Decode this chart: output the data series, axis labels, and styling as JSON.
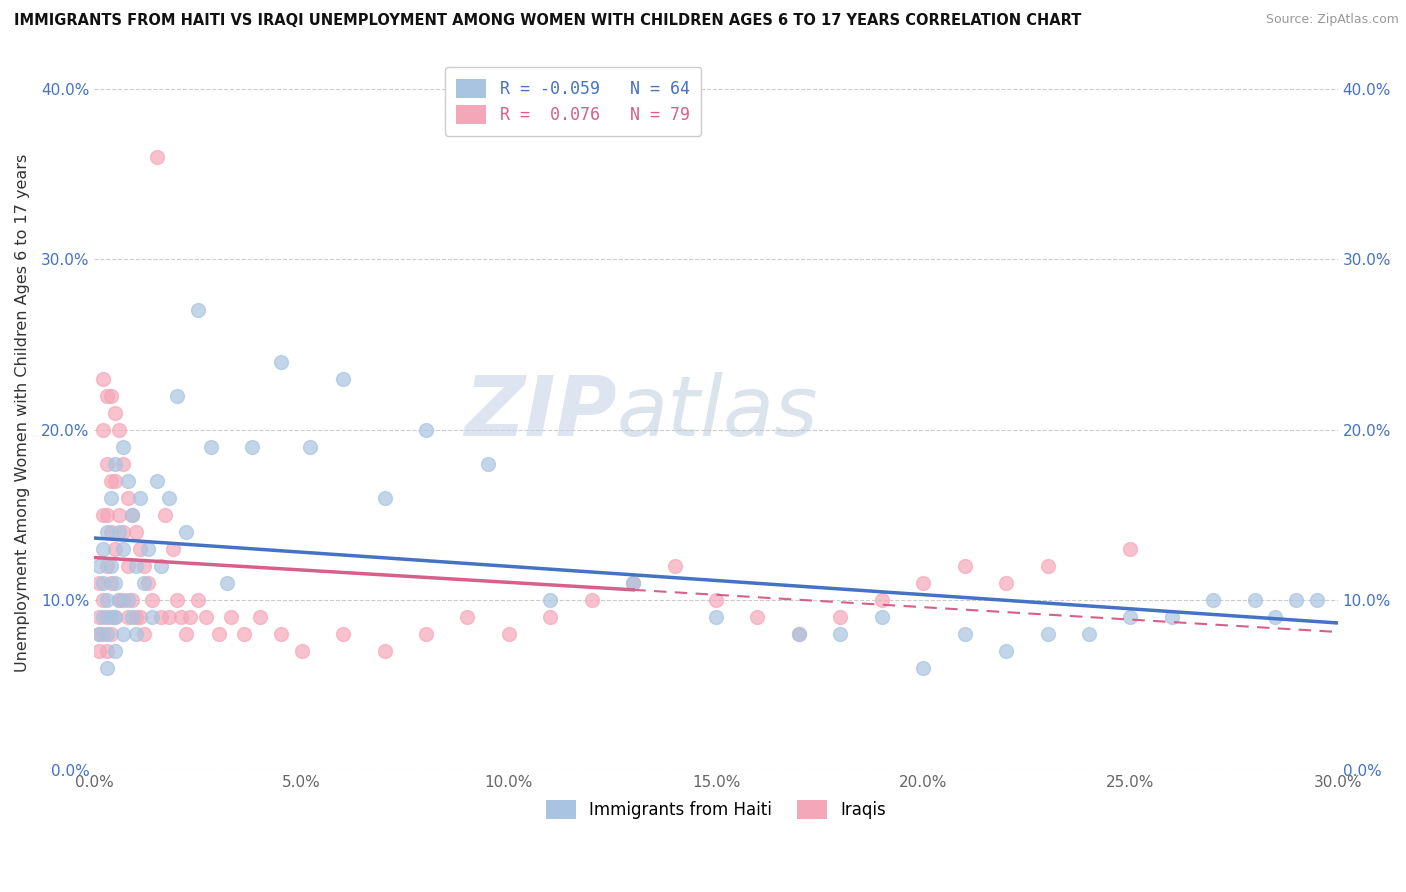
{
  "title": "IMMIGRANTS FROM HAITI VS IRAQI UNEMPLOYMENT AMONG WOMEN WITH CHILDREN AGES 6 TO 17 YEARS CORRELATION CHART",
  "source": "Source: ZipAtlas.com",
  "ylabel": "Unemployment Among Women with Children Ages 6 to 17 years",
  "xlim": [
    0.0,
    0.3
  ],
  "ylim": [
    0.0,
    0.42
  ],
  "xtick_labels": [
    "0.0%",
    "5.0%",
    "10.0%",
    "15.0%",
    "20.0%",
    "25.0%",
    "30.0%"
  ],
  "xtick_values": [
    0.0,
    0.05,
    0.1,
    0.15,
    0.2,
    0.25,
    0.3
  ],
  "ytick_labels": [
    "0.0%",
    "10.0%",
    "20.0%",
    "30.0%",
    "40.0%"
  ],
  "ytick_values": [
    0.0,
    0.1,
    0.2,
    0.3,
    0.4
  ],
  "haiti_color": "#a8c4e0",
  "iraqi_color": "#f4a7b9",
  "legend_haiti_label": "Immigrants from Haiti",
  "legend_iraqi_label": "Iraqis",
  "haiti_R": -0.059,
  "haiti_N": 64,
  "iraqi_R": 0.076,
  "iraqi_N": 79,
  "haiti_line_color": "#4472c4",
  "iraqi_line_color": "#d75f8a",
  "watermark_zip": "ZIP",
  "watermark_atlas": "atlas",
  "haiti_scatter_x": [
    0.001,
    0.001,
    0.002,
    0.002,
    0.002,
    0.003,
    0.003,
    0.003,
    0.003,
    0.004,
    0.004,
    0.004,
    0.005,
    0.005,
    0.005,
    0.005,
    0.006,
    0.006,
    0.007,
    0.007,
    0.007,
    0.008,
    0.008,
    0.009,
    0.009,
    0.01,
    0.01,
    0.011,
    0.012,
    0.013,
    0.014,
    0.015,
    0.016,
    0.018,
    0.02,
    0.022,
    0.025,
    0.028,
    0.032,
    0.038,
    0.045,
    0.052,
    0.06,
    0.07,
    0.08,
    0.095,
    0.11,
    0.13,
    0.15,
    0.17,
    0.18,
    0.19,
    0.2,
    0.21,
    0.22,
    0.23,
    0.24,
    0.25,
    0.26,
    0.27,
    0.28,
    0.285,
    0.29,
    0.295
  ],
  "haiti_scatter_y": [
    0.12,
    0.08,
    0.13,
    0.09,
    0.11,
    0.1,
    0.14,
    0.08,
    0.06,
    0.16,
    0.09,
    0.12,
    0.18,
    0.11,
    0.07,
    0.09,
    0.14,
    0.1,
    0.19,
    0.13,
    0.08,
    0.17,
    0.1,
    0.15,
    0.09,
    0.12,
    0.08,
    0.16,
    0.11,
    0.13,
    0.09,
    0.17,
    0.12,
    0.16,
    0.22,
    0.14,
    0.27,
    0.19,
    0.11,
    0.19,
    0.24,
    0.19,
    0.23,
    0.16,
    0.2,
    0.18,
    0.1,
    0.11,
    0.09,
    0.08,
    0.08,
    0.09,
    0.06,
    0.08,
    0.07,
    0.08,
    0.08,
    0.09,
    0.09,
    0.1,
    0.1,
    0.09,
    0.1,
    0.1
  ],
  "iraqi_scatter_x": [
    0.001,
    0.001,
    0.001,
    0.001,
    0.002,
    0.002,
    0.002,
    0.002,
    0.002,
    0.003,
    0.003,
    0.003,
    0.003,
    0.003,
    0.003,
    0.004,
    0.004,
    0.004,
    0.004,
    0.004,
    0.005,
    0.005,
    0.005,
    0.005,
    0.006,
    0.006,
    0.006,
    0.007,
    0.007,
    0.007,
    0.008,
    0.008,
    0.008,
    0.009,
    0.009,
    0.01,
    0.01,
    0.011,
    0.011,
    0.012,
    0.012,
    0.013,
    0.014,
    0.015,
    0.016,
    0.017,
    0.018,
    0.019,
    0.02,
    0.021,
    0.022,
    0.023,
    0.025,
    0.027,
    0.03,
    0.033,
    0.036,
    0.04,
    0.045,
    0.05,
    0.06,
    0.07,
    0.08,
    0.09,
    0.1,
    0.11,
    0.12,
    0.13,
    0.14,
    0.15,
    0.16,
    0.17,
    0.18,
    0.19,
    0.2,
    0.21,
    0.22,
    0.23,
    0.25
  ],
  "iraqi_scatter_y": [
    0.11,
    0.09,
    0.08,
    0.07,
    0.23,
    0.2,
    0.15,
    0.1,
    0.08,
    0.22,
    0.18,
    0.15,
    0.12,
    0.09,
    0.07,
    0.22,
    0.17,
    0.14,
    0.11,
    0.08,
    0.21,
    0.17,
    0.13,
    0.09,
    0.2,
    0.15,
    0.1,
    0.18,
    0.14,
    0.1,
    0.16,
    0.12,
    0.09,
    0.15,
    0.1,
    0.14,
    0.09,
    0.13,
    0.09,
    0.12,
    0.08,
    0.11,
    0.1,
    0.36,
    0.09,
    0.15,
    0.09,
    0.13,
    0.1,
    0.09,
    0.08,
    0.09,
    0.1,
    0.09,
    0.08,
    0.09,
    0.08,
    0.09,
    0.08,
    0.07,
    0.08,
    0.07,
    0.08,
    0.09,
    0.08,
    0.09,
    0.1,
    0.11,
    0.12,
    0.1,
    0.09,
    0.08,
    0.09,
    0.1,
    0.11,
    0.12,
    0.11,
    0.12,
    0.13
  ]
}
